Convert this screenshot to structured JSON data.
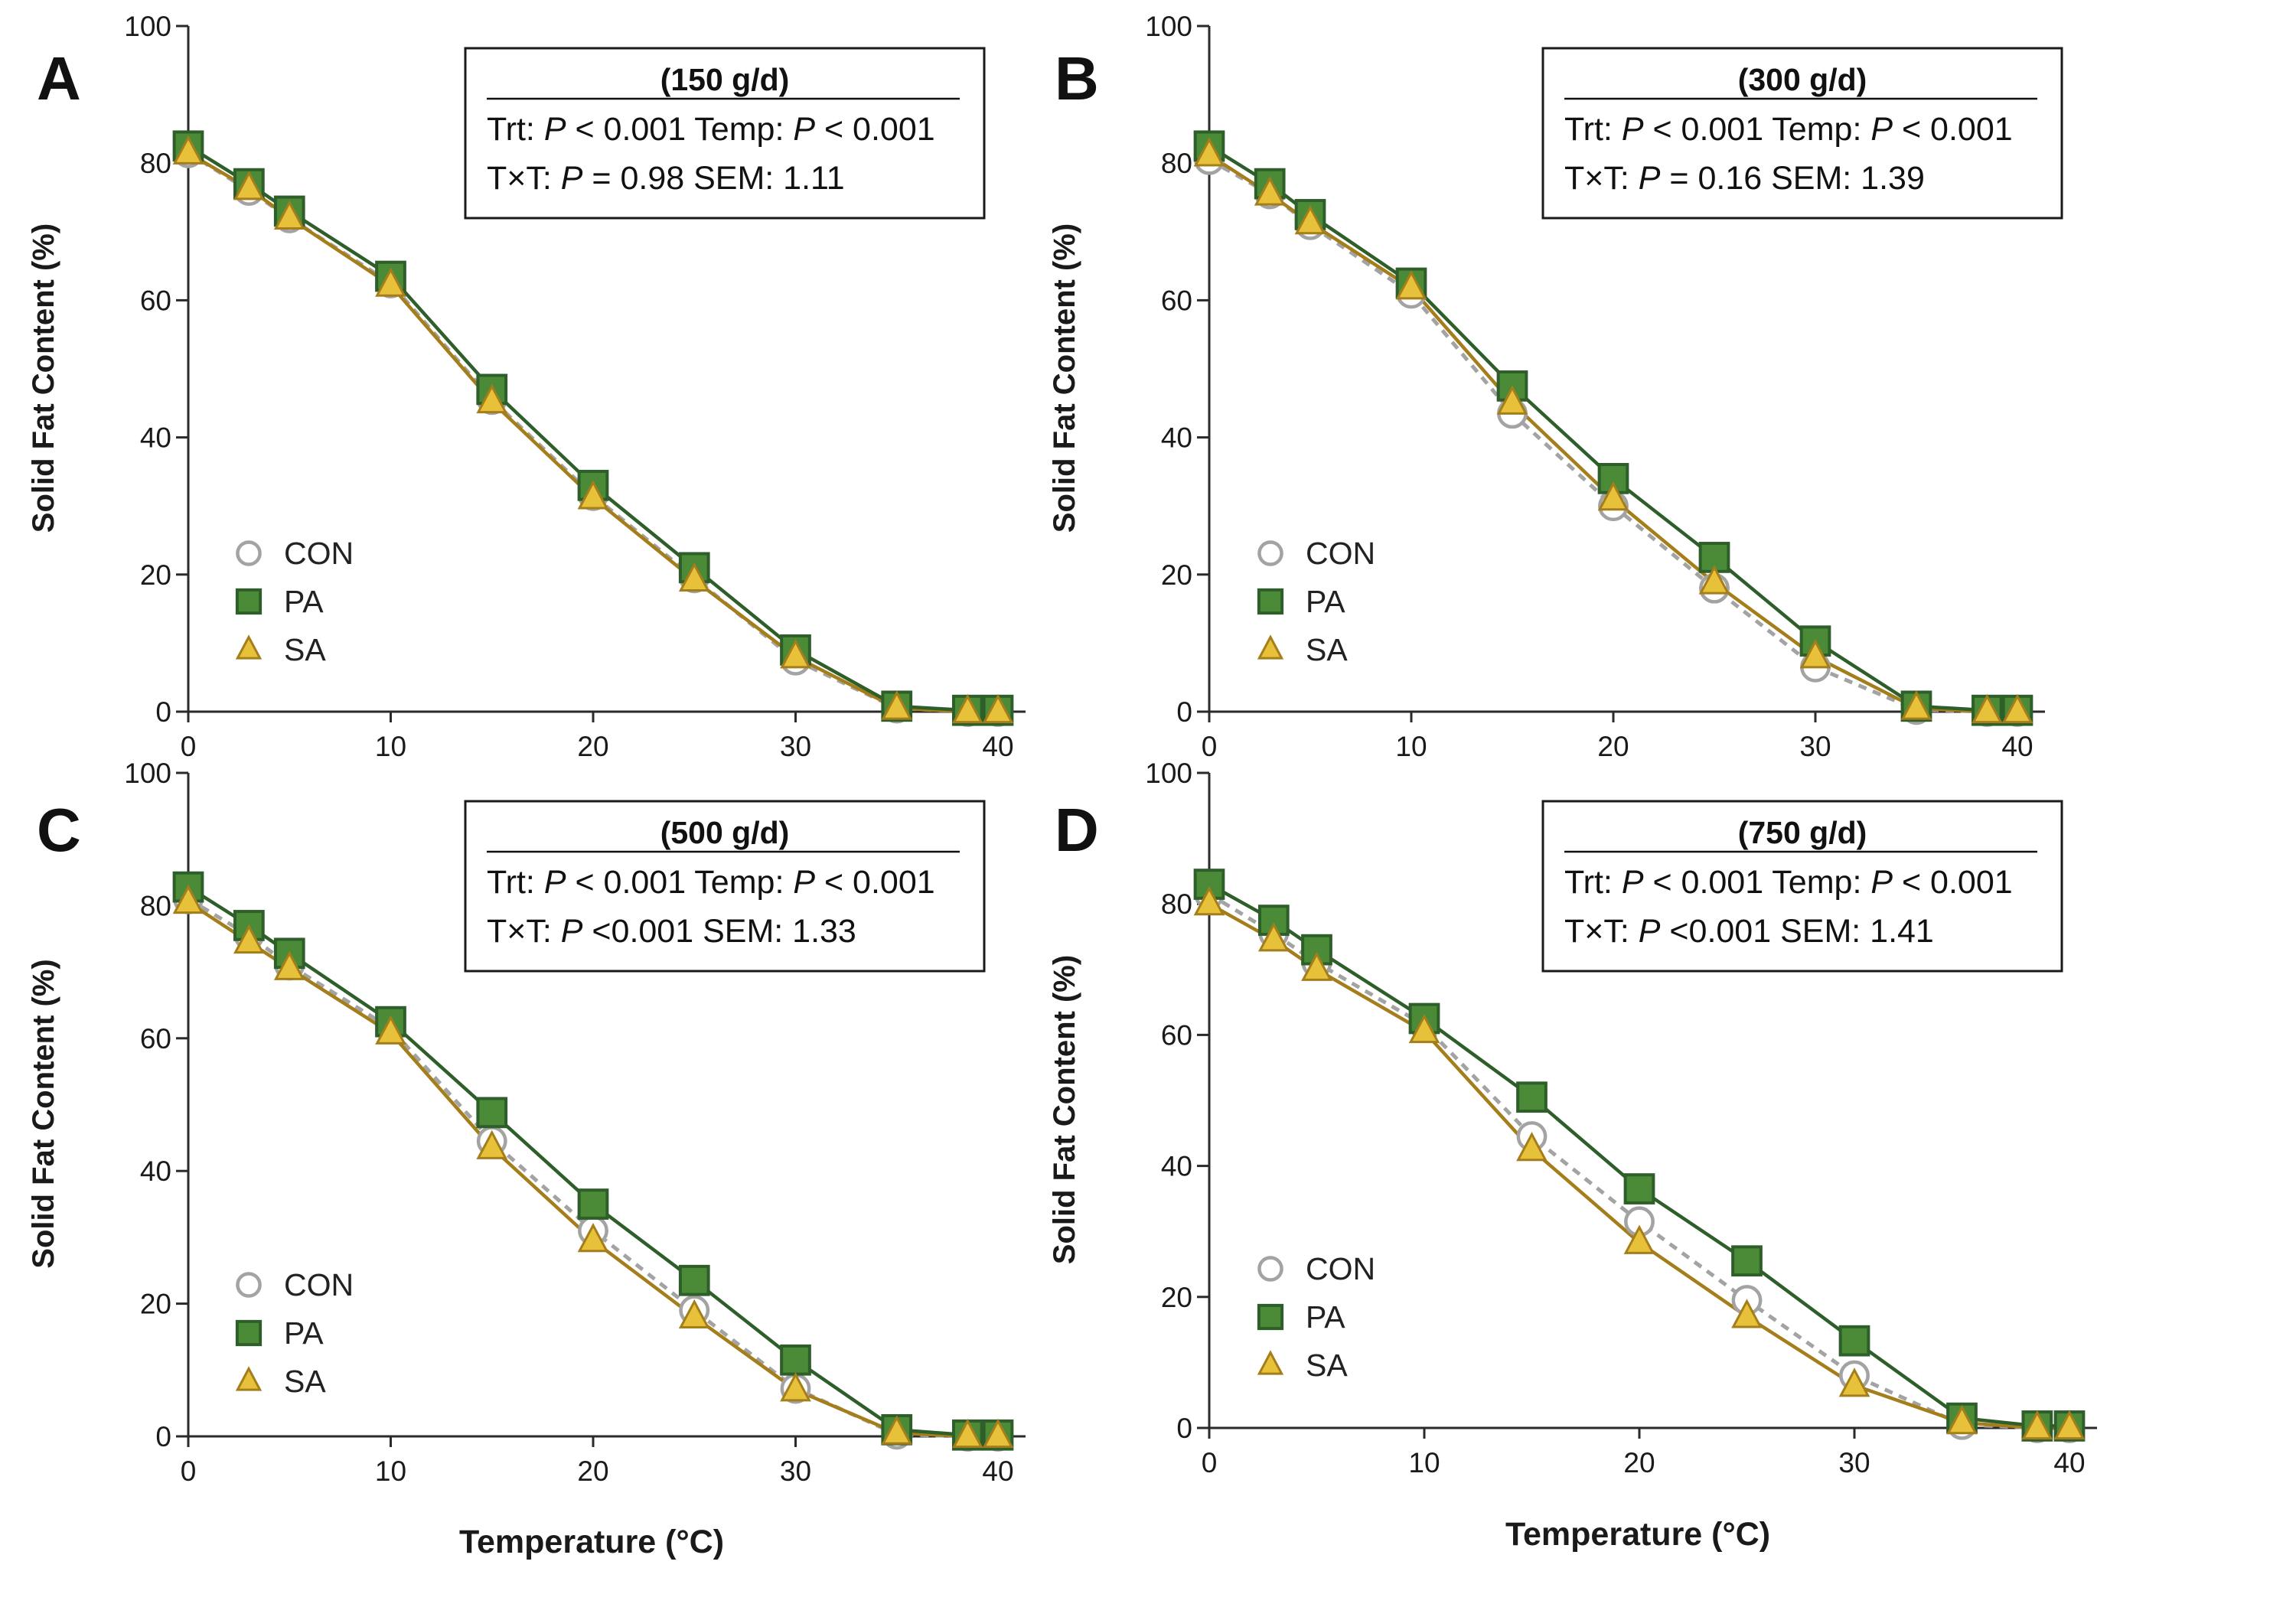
{
  "colors": {
    "CON": "#a3a3a3",
    "PA_line": "#2e5e2a",
    "PA_fill": "#4b8a36",
    "SA_line": "#a57e1c",
    "SA_fill": "#e8c13a"
  },
  "chart_data": [
    {
      "type": "line",
      "panel": "A",
      "title": "(150 g/d)",
      "xlabel": "Temperature (°C)",
      "ylabel": "Solid Fat Content (%)",
      "xlim": [
        0,
        40
      ],
      "ylim": [
        0,
        100
      ],
      "xticks": [
        0,
        10,
        20,
        30,
        40
      ],
      "yticks": [
        0,
        20,
        40,
        60,
        80,
        100
      ],
      "grid": false,
      "legend": "bottom-left",
      "stats": [
        "Trt: P < 0.001  Temp: P < 0.001",
        "T×T: P = 0.98  SEM: 1.11"
      ],
      "x": [
        0,
        3,
        5,
        10,
        15,
        20,
        25,
        30,
        35,
        38.5,
        40
      ],
      "series": [
        {
          "name": "CON",
          "values": [
            81.5,
            76,
            72,
            62.5,
            45.5,
            31.5,
            19.5,
            7.5,
            0.5,
            0,
            0
          ]
        },
        {
          "name": "PA",
          "values": [
            82.5,
            77,
            73,
            63.5,
            47,
            33,
            21,
            9,
            0.8,
            0.2,
            0.2
          ]
        },
        {
          "name": "SA",
          "values": [
            81.5,
            76.3,
            72,
            62.2,
            45.2,
            31.2,
            19.2,
            8,
            0.5,
            0,
            0
          ]
        }
      ]
    },
    {
      "type": "line",
      "panel": "B",
      "title": "(300 g/d)",
      "xlabel": "",
      "ylabel": "Solid Fat Content (%)",
      "xlim": [
        0,
        40
      ],
      "ylim": [
        0,
        100
      ],
      "xticks": [
        0,
        10,
        20,
        30,
        40
      ],
      "yticks": [
        0,
        20,
        40,
        60,
        80,
        100
      ],
      "grid": false,
      "legend": "bottom-left",
      "stats": [
        "Trt: P < 0.001  Temp: P < 0.001",
        "T×T: P = 0.16  SEM: 1.39"
      ],
      "x": [
        0,
        3,
        5,
        10,
        15,
        20,
        25,
        30,
        35,
        38.5,
        40
      ],
      "series": [
        {
          "name": "CON",
          "values": [
            80.5,
            75.5,
            71,
            61,
            43.5,
            30,
            18,
            6.5,
            0.3,
            0,
            0
          ]
        },
        {
          "name": "PA",
          "values": [
            82.5,
            77,
            72.5,
            62.5,
            47.5,
            34,
            22.5,
            10.3,
            0.8,
            0.2,
            0.2
          ]
        },
        {
          "name": "SA",
          "values": [
            81.2,
            75.5,
            71.3,
            61.8,
            45,
            31,
            18.8,
            8,
            0.5,
            0,
            0
          ]
        }
      ]
    },
    {
      "type": "line",
      "panel": "C",
      "title": "(500 g/d)",
      "xlabel": "Temperature (°C)",
      "ylabel": "Solid Fat Content (%)",
      "xlim": [
        0,
        40
      ],
      "ylim": [
        0,
        100
      ],
      "xticks": [
        0,
        10,
        20,
        30,
        40
      ],
      "yticks": [
        0,
        20,
        40,
        60,
        80,
        100
      ],
      "grid": false,
      "legend": "bottom-left",
      "stats": [
        "Trt: P < 0.001  Temp: P < 0.001",
        "T×T: P <0.001  SEM: 1.33"
      ],
      "x": [
        0,
        3,
        5,
        10,
        15,
        20,
        25,
        30,
        35,
        38.5,
        40
      ],
      "series": [
        {
          "name": "CON",
          "values": [
            81,
            75.5,
            71,
            61.5,
            44.5,
            31,
            19,
            7.2,
            0.3,
            0,
            0
          ]
        },
        {
          "name": "PA",
          "values": [
            82.8,
            77,
            72.8,
            62.5,
            48.8,
            35,
            23.5,
            11.5,
            1,
            0.2,
            0.2
          ]
        },
        {
          "name": "SA",
          "values": [
            80.5,
            74.5,
            70.5,
            60.8,
            43.5,
            29.5,
            18,
            7,
            0.5,
            0,
            0
          ]
        }
      ]
    },
    {
      "type": "line",
      "panel": "D",
      "title": "(750 g/d)",
      "xlabel": "Temperature (°C)",
      "ylabel": "Solid Fat Content (%)",
      "xlim": [
        0,
        40
      ],
      "ylim": [
        0,
        100
      ],
      "xticks": [
        0,
        10,
        20,
        30,
        40
      ],
      "yticks": [
        0,
        20,
        40,
        60,
        80,
        100
      ],
      "grid": false,
      "legend": "bottom-left",
      "stats": [
        "Trt: P < 0.001  Temp: P < 0.001",
        "T×T: P <0.001  SEM: 1.41"
      ],
      "x": [
        0,
        3,
        5,
        10,
        15,
        20,
        25,
        30,
        35,
        38.5,
        40
      ],
      "series": [
        {
          "name": "CON",
          "values": [
            81.5,
            75.5,
            71,
            61.5,
            44.5,
            31.5,
            19.5,
            8,
            0.5,
            0,
            0
          ]
        },
        {
          "name": "PA",
          "values": [
            83,
            77.5,
            73,
            62.5,
            50.5,
            36.5,
            25.5,
            13.3,
            1.5,
            0.3,
            0.3
          ]
        },
        {
          "name": "SA",
          "values": [
            80,
            74.5,
            70,
            60.5,
            42.5,
            28.3,
            17,
            6.5,
            0.8,
            0,
            0
          ]
        }
      ]
    }
  ]
}
